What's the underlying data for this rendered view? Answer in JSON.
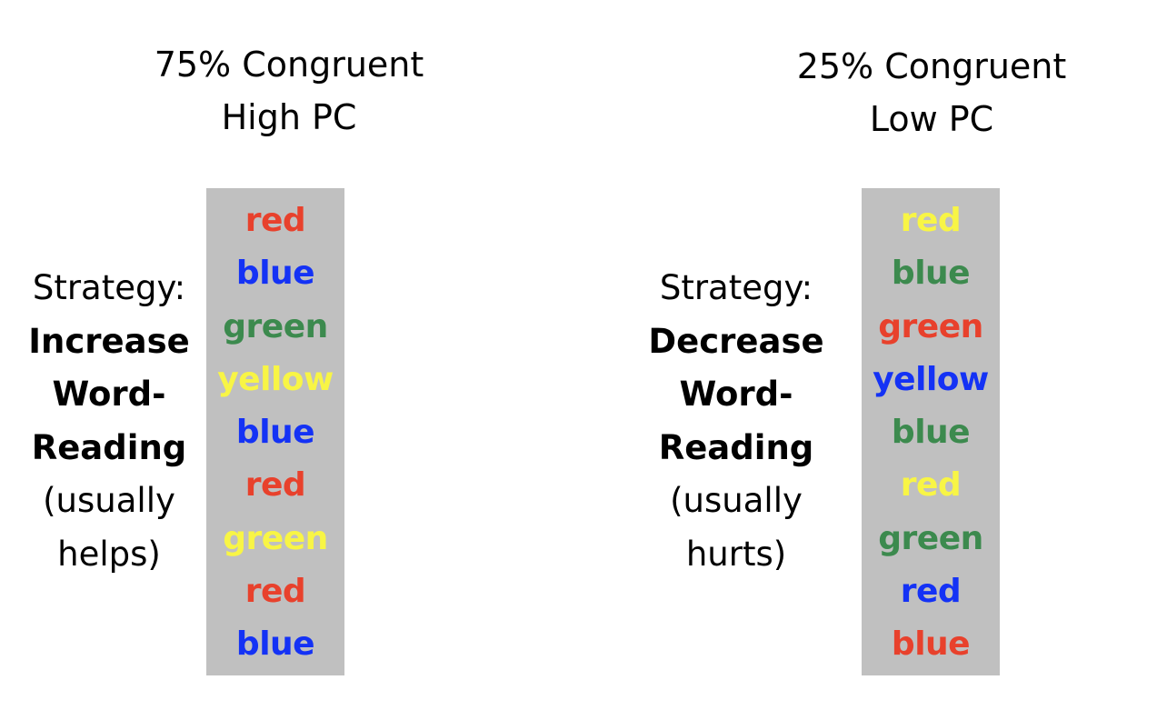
{
  "colors": {
    "red": "#e8412c",
    "blue": "#1432f5",
    "green": "#3c8a4e",
    "yellow": "#f8f545",
    "box": "#c0c0c0"
  },
  "left": {
    "title_line1": "75% Congruent",
    "title_line2": "High PC",
    "strategy_label": "Strategy:",
    "strategy_line1": "Increase",
    "strategy_line2": "Word-",
    "strategy_line3": "Reading",
    "note_line1": "(usually",
    "note_line2": "helps)",
    "words": [
      {
        "text": "red",
        "color": "red"
      },
      {
        "text": "blue",
        "color": "blue"
      },
      {
        "text": "green",
        "color": "green"
      },
      {
        "text": "yellow",
        "color": "yellow"
      },
      {
        "text": "blue",
        "color": "blue"
      },
      {
        "text": "red",
        "color": "red"
      },
      {
        "text": "green",
        "color": "yellow"
      },
      {
        "text": "red",
        "color": "red"
      },
      {
        "text": "blue",
        "color": "blue"
      }
    ]
  },
  "right": {
    "title_line1": "25% Congruent",
    "title_line2": "Low PC",
    "strategy_label": "Strategy:",
    "strategy_line1": "Decrease",
    "strategy_line2": "Word-",
    "strategy_line3": "Reading",
    "note_line1": "(usually",
    "note_line2": "hurts)",
    "words": [
      {
        "text": "red",
        "color": "yellow"
      },
      {
        "text": "blue",
        "color": "green"
      },
      {
        "text": "green",
        "color": "red"
      },
      {
        "text": "yellow",
        "color": "blue"
      },
      {
        "text": "blue",
        "color": "green"
      },
      {
        "text": "red",
        "color": "yellow"
      },
      {
        "text": "green",
        "color": "green"
      },
      {
        "text": "red",
        "color": "blue"
      },
      {
        "text": "blue",
        "color": "red"
      }
    ]
  }
}
